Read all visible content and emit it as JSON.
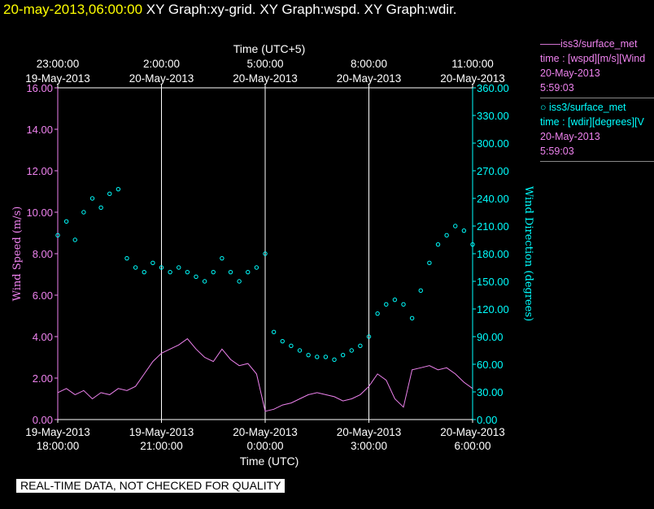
{
  "title": {
    "timestamp": "20-may-2013,06:00:00",
    "graphs": "XY Graph:xy-grid.  XY Graph:wspd.  XY Graph:wdir."
  },
  "legend": [
    {
      "line1": "——iss3/surface_met",
      "line2": "time : [wspd][m/s][Wind",
      "line3": "20-May-2013",
      "line4": "5:59:03",
      "color": "#ee82ee"
    },
    {
      "line1": "○ iss3/surface_met",
      "line2": "time : [wdir][degrees][V",
      "line3": "20-May-2013",
      "line4": "5:59:03",
      "color": "#00ffff"
    }
  ],
  "disclaimer": "REAL-TIME DATA, NOT CHECKED FOR QUALITY",
  "chart_data": {
    "type": "line",
    "top_axis": {
      "label": "Time (UTC+5)",
      "ticks": [
        {
          "time": "23:00:00",
          "date": "19-May-2013"
        },
        {
          "time": "2:00:00",
          "date": "20-May-2013"
        },
        {
          "time": "5:00:00",
          "date": "20-May-2013"
        },
        {
          "time": "8:00:00",
          "date": "20-May-2013"
        },
        {
          "time": "11:00:00",
          "date": "20-May-2013"
        }
      ]
    },
    "bottom_axis": {
      "label": "Time (UTC)",
      "ticks": [
        {
          "date": "19-May-2013",
          "time": "18:00:00"
        },
        {
          "date": "19-May-2013",
          "time": "21:00:00"
        },
        {
          "date": "20-May-2013",
          "time": "0:00:00"
        },
        {
          "date": "20-May-2013",
          "time": "3:00:00"
        },
        {
          "date": "20-May-2013",
          "time": "6:00:00"
        }
      ],
      "xlim_hours": [
        0,
        12
      ]
    },
    "left_axis": {
      "label": "Wind Speed (m/s)",
      "ylim": [
        0,
        16
      ],
      "ticks": [
        "0.00",
        "2.00",
        "4.00",
        "6.00",
        "8.00",
        "10.00",
        "12.00",
        "14.00",
        "16.00"
      ]
    },
    "right_axis": {
      "label": "Wind Direction (degrees)",
      "ylim": [
        0,
        360
      ],
      "ticks": [
        "0.00",
        "30.00",
        "60.00",
        "90.00",
        "120.00",
        "150.00",
        "180.00",
        "210.00",
        "240.00",
        "270.00",
        "300.00",
        "330.00",
        "360.00"
      ]
    },
    "gridlines_hours": [
      3,
      6,
      9
    ],
    "series": [
      {
        "name": "wspd",
        "style": "line",
        "axis": "left",
        "color": "#ee82ee",
        "x_hours": [
          0,
          0.25,
          0.5,
          0.75,
          1,
          1.25,
          1.5,
          1.75,
          2,
          2.25,
          2.5,
          2.75,
          3,
          3.25,
          3.5,
          3.75,
          4,
          4.25,
          4.5,
          4.75,
          5,
          5.25,
          5.5,
          5.75,
          6,
          6.25,
          6.5,
          6.75,
          7,
          7.25,
          7.5,
          7.75,
          8,
          8.25,
          8.5,
          8.75,
          9,
          9.25,
          9.5,
          9.75,
          10,
          10.25,
          10.5,
          10.75,
          11,
          11.25,
          11.5,
          11.75,
          12
        ],
        "values": [
          1.3,
          1.5,
          1.2,
          1.4,
          1.0,
          1.3,
          1.2,
          1.5,
          1.4,
          1.6,
          2.2,
          2.8,
          3.2,
          3.4,
          3.6,
          3.9,
          3.4,
          3.0,
          2.8,
          3.4,
          2.9,
          2.6,
          2.7,
          2.2,
          0.4,
          0.5,
          0.7,
          0.8,
          1.0,
          1.2,
          1.3,
          1.2,
          1.1,
          0.9,
          1.0,
          1.2,
          1.6,
          2.2,
          1.9,
          1.0,
          0.6,
          2.4,
          2.5,
          2.6,
          2.4,
          2.5,
          2.2,
          1.8,
          1.5
        ]
      },
      {
        "name": "wdir",
        "style": "scatter",
        "axis": "right",
        "color": "#00ffff",
        "x_hours": [
          0,
          0.25,
          0.5,
          0.75,
          1,
          1.25,
          1.5,
          1.75,
          2,
          2.25,
          2.5,
          2.75,
          3,
          3.25,
          3.5,
          3.75,
          4,
          4.25,
          4.5,
          4.75,
          5,
          5.25,
          5.5,
          5.75,
          6,
          6.25,
          6.5,
          6.75,
          7,
          7.25,
          7.5,
          7.75,
          8,
          8.25,
          8.5,
          8.75,
          9,
          9.25,
          9.5,
          9.75,
          10,
          10.25,
          10.5,
          10.75,
          11,
          11.25,
          11.5,
          11.75,
          12
        ],
        "values": [
          200,
          215,
          195,
          225,
          240,
          230,
          245,
          250,
          175,
          165,
          160,
          170,
          165,
          160,
          165,
          160,
          155,
          150,
          160,
          175,
          160,
          150,
          160,
          165,
          180,
          95,
          85,
          80,
          75,
          70,
          68,
          68,
          65,
          70,
          75,
          80,
          90,
          115,
          125,
          130,
          125,
          110,
          140,
          170,
          190,
          200,
          210,
          205,
          190
        ]
      }
    ]
  }
}
